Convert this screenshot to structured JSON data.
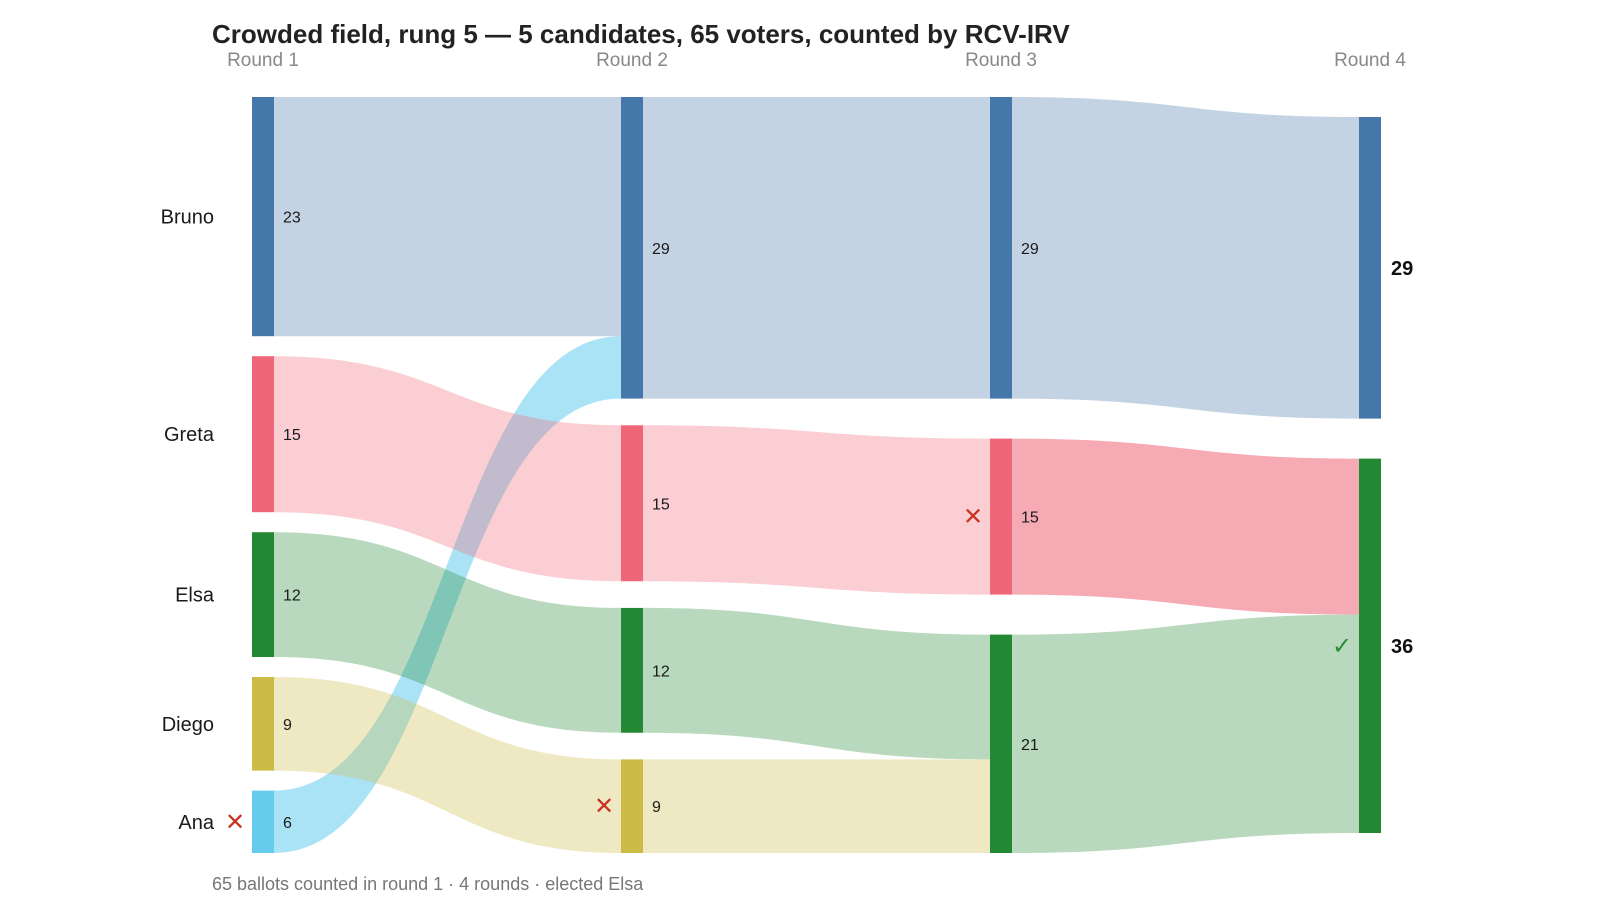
{
  "title": "Crowded field, rung 5 — 5 candidates, 65 voters, counted by RCV-IRV",
  "footer": "65 ballots counted in round 1 · 4 rounds · elected Elsa",
  "chart_data": {
    "type": "sankey",
    "rounds": [
      "Round 1",
      "Round 2",
      "Round 3",
      "Round 4"
    ],
    "candidates": [
      {
        "name": "Bruno",
        "color": "#4677aa"
      },
      {
        "name": "Greta",
        "color": "#ee6677"
      },
      {
        "name": "Elsa",
        "color": "#228833"
      },
      {
        "name": "Diego",
        "color": "#ccbb44"
      },
      {
        "name": "Ana",
        "color": "#66ccee"
      }
    ],
    "tallies": [
      {
        "round": "Round 1",
        "counts": [
          {
            "candidate": "Bruno",
            "votes": 23
          },
          {
            "candidate": "Greta",
            "votes": 15
          },
          {
            "candidate": "Elsa",
            "votes": 12
          },
          {
            "candidate": "Diego",
            "votes": 9
          },
          {
            "candidate": "Ana",
            "votes": 6
          }
        ],
        "eliminated": "Ana"
      },
      {
        "round": "Round 2",
        "counts": [
          {
            "candidate": "Bruno",
            "votes": 29
          },
          {
            "candidate": "Greta",
            "votes": 15
          },
          {
            "candidate": "Elsa",
            "votes": 12
          },
          {
            "candidate": "Diego",
            "votes": 9
          }
        ],
        "eliminated": "Diego"
      },
      {
        "round": "Round 3",
        "counts": [
          {
            "candidate": "Bruno",
            "votes": 29
          },
          {
            "candidate": "Greta",
            "votes": 15
          },
          {
            "candidate": "Elsa",
            "votes": 21
          }
        ],
        "eliminated": "Greta"
      },
      {
        "round": "Round 4",
        "counts": [
          {
            "candidate": "Bruno",
            "votes": 29
          },
          {
            "candidate": "Elsa",
            "votes": 36
          }
        ],
        "winner": "Elsa"
      }
    ],
    "flows": [
      {
        "from_round": 0,
        "from": "Bruno",
        "to": "Bruno",
        "votes": 23
      },
      {
        "from_round": 0,
        "from": "Ana",
        "to": "Bruno",
        "votes": 6
      },
      {
        "from_round": 0,
        "from": "Greta",
        "to": "Greta",
        "votes": 15
      },
      {
        "from_round": 0,
        "from": "Elsa",
        "to": "Elsa",
        "votes": 12
      },
      {
        "from_round": 0,
        "from": "Diego",
        "to": "Diego",
        "votes": 9
      },
      {
        "from_round": 1,
        "from": "Bruno",
        "to": "Bruno",
        "votes": 29
      },
      {
        "from_round": 1,
        "from": "Greta",
        "to": "Greta",
        "votes": 15
      },
      {
        "from_round": 1,
        "from": "Elsa",
        "to": "Elsa",
        "votes": 12
      },
      {
        "from_round": 1,
        "from": "Diego",
        "to": "Elsa",
        "votes": 9
      },
      {
        "from_round": 2,
        "from": "Bruno",
        "to": "Bruno",
        "votes": 29
      },
      {
        "from_round": 2,
        "from": "Greta",
        "to": "Elsa",
        "votes": 15
      },
      {
        "from_round": 2,
        "from": "Elsa",
        "to": "Elsa",
        "votes": 21
      }
    ]
  }
}
